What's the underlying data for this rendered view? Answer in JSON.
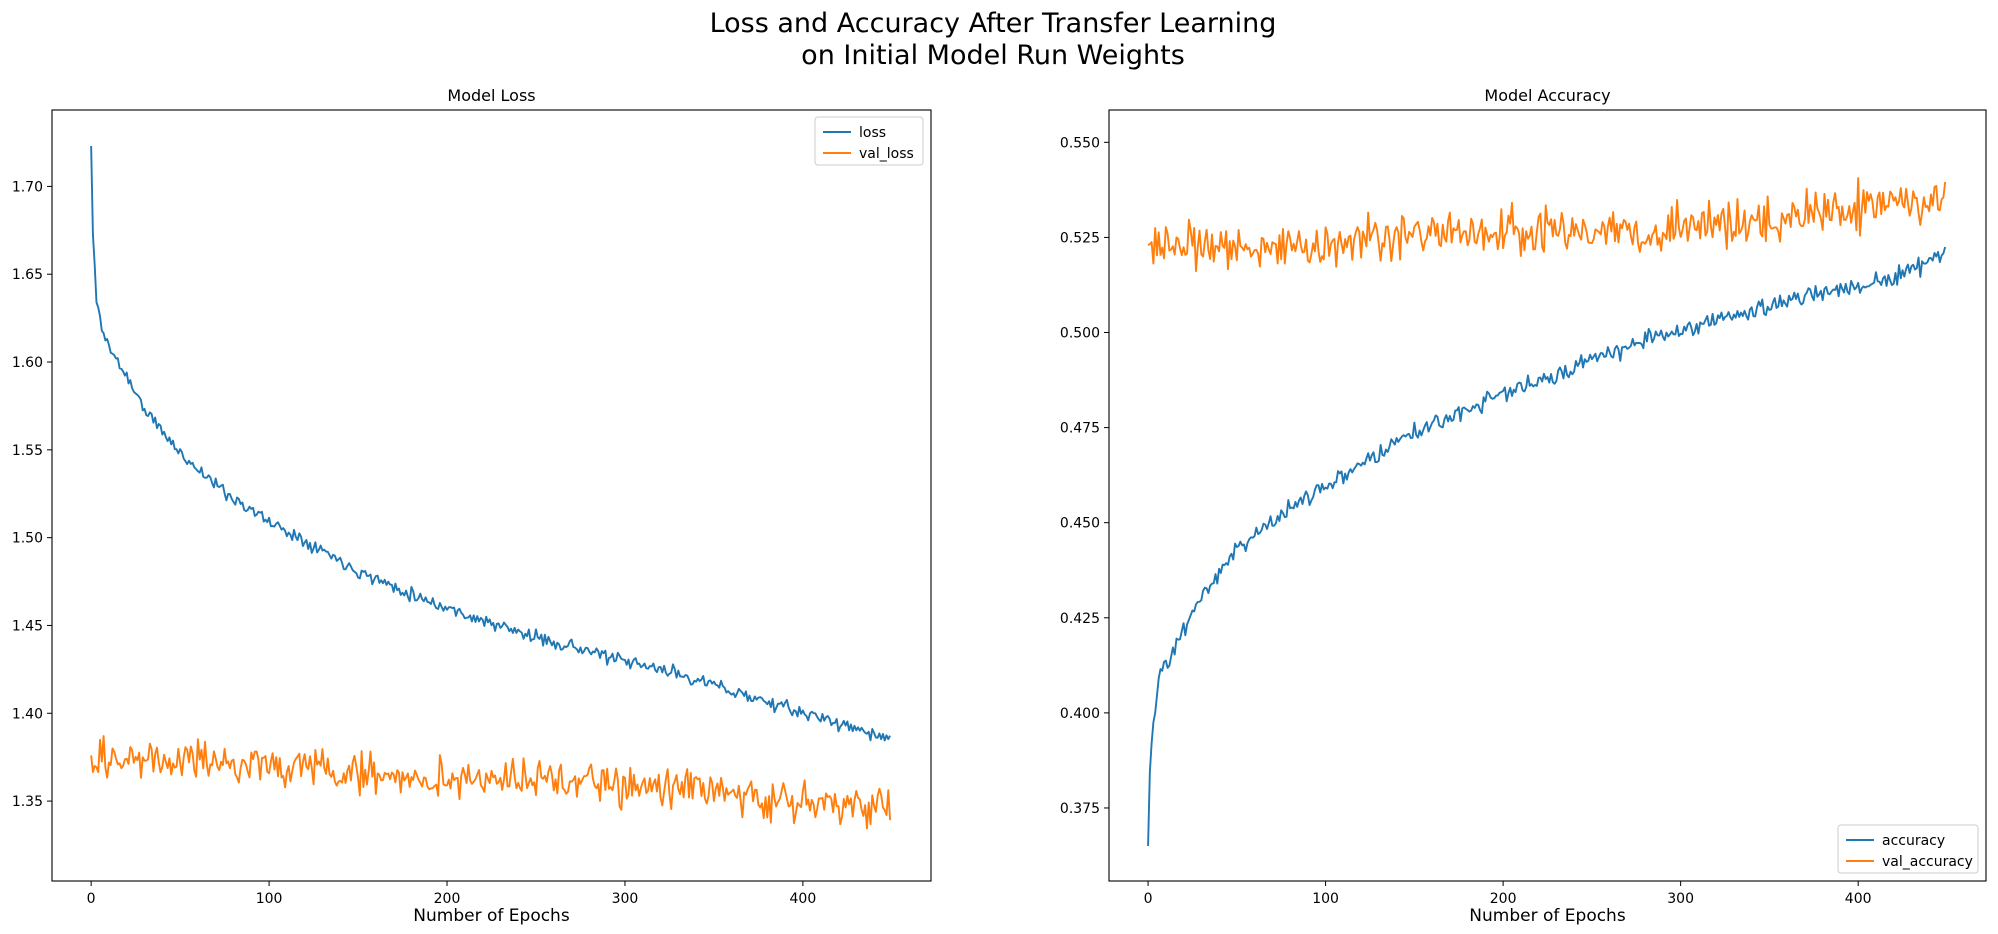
{
  "figure": {
    "suptitle_lines": [
      "Loss and Accuracy After Transfer Learning",
      "on Initial Model Run Weights"
    ]
  },
  "colors": {
    "series_1": "#1f77b4",
    "series_2": "#ff7f0e",
    "axes": "#000000",
    "legend_border": "#cccccc"
  },
  "chart_data": [
    {
      "type": "line",
      "title": "Model Loss",
      "xlabel": "Number of Epochs",
      "ylabel": "",
      "xlim": [
        -22,
        472
      ],
      "ylim": [
        1.3045,
        1.7435
      ],
      "xticks": [
        0,
        100,
        200,
        300,
        400
      ],
      "yticks": [
        1.35,
        1.4,
        1.45,
        1.5,
        1.55,
        1.6,
        1.65,
        1.7
      ],
      "ytick_decimals": 2,
      "grid": false,
      "legend": "top-right",
      "x_count": 450,
      "series": [
        {
          "name": "loss",
          "color": "#1f77b4",
          "anchors": [
            [
              0,
              1.723
            ],
            [
              1,
              1.672
            ],
            [
              3,
              1.635
            ],
            [
              5,
              1.625
            ],
            [
              8,
              1.613
            ],
            [
              12,
              1.605
            ],
            [
              20,
              1.592
            ],
            [
              30,
              1.573
            ],
            [
              50,
              1.548
            ],
            [
              75,
              1.526
            ],
            [
              100,
              1.509
            ],
            [
              125,
              1.496
            ],
            [
              150,
              1.481
            ],
            [
              175,
              1.47
            ],
            [
              200,
              1.46
            ],
            [
              225,
              1.451
            ],
            [
              250,
              1.443
            ],
            [
              275,
              1.437
            ],
            [
              300,
              1.429
            ],
            [
              325,
              1.424
            ],
            [
              350,
              1.416
            ],
            [
              375,
              1.408
            ],
            [
              400,
              1.4
            ],
            [
              425,
              1.393
            ],
            [
              449,
              1.385
            ]
          ],
          "noise": 0.0055,
          "seed": 11,
          "clamp": [
            1.382,
            1.723
          ]
        },
        {
          "name": "val_loss",
          "color": "#ff7f0e",
          "anchors": [
            [
              0,
              1.376
            ],
            [
              50,
              1.372
            ],
            [
              100,
              1.371
            ],
            [
              150,
              1.366
            ],
            [
              200,
              1.362
            ],
            [
              250,
              1.362
            ],
            [
              300,
              1.359
            ],
            [
              350,
              1.355
            ],
            [
              400,
              1.35
            ],
            [
              449,
              1.347
            ]
          ],
          "noise": 0.017,
          "seed": 29,
          "clamp": [
            1.322,
            1.407
          ]
        }
      ]
    },
    {
      "type": "line",
      "title": "Model Accuracy",
      "xlabel": "Number of Epochs",
      "ylabel": "",
      "xlim": [
        -22,
        472
      ],
      "ylim": [
        0.3558,
        0.5585
      ],
      "xticks": [
        0,
        100,
        200,
        300,
        400
      ],
      "yticks": [
        0.375,
        0.4,
        0.425,
        0.45,
        0.475,
        0.5,
        0.525,
        0.55
      ],
      "ytick_decimals": 3,
      "grid": false,
      "legend": "bottom-right",
      "x_count": 450,
      "series": [
        {
          "name": "accuracy",
          "color": "#1f77b4",
          "anchors": [
            [
              0,
              0.365
            ],
            [
              1,
              0.385
            ],
            [
              3,
              0.398
            ],
            [
              6,
              0.409
            ],
            [
              10,
              0.413
            ],
            [
              20,
              0.422
            ],
            [
              30,
              0.431
            ],
            [
              50,
              0.443
            ],
            [
              75,
              0.452
            ],
            [
              100,
              0.46
            ],
            [
              125,
              0.467
            ],
            [
              150,
              0.474
            ],
            [
              175,
              0.479
            ],
            [
              200,
              0.484
            ],
            [
              225,
              0.488
            ],
            [
              250,
              0.493
            ],
            [
              275,
              0.497
            ],
            [
              300,
              0.501
            ],
            [
              325,
              0.504
            ],
            [
              350,
              0.507
            ],
            [
              375,
              0.51
            ],
            [
              400,
              0.512
            ],
            [
              425,
              0.515
            ],
            [
              449,
              0.521
            ]
          ],
          "noise": 0.0035,
          "seed": 47,
          "clamp": [
            0.365,
            0.524
          ]
        },
        {
          "name": "val_accuracy",
          "color": "#ff7f0e",
          "anchors": [
            [
              0,
              0.523
            ],
            [
              50,
              0.522
            ],
            [
              100,
              0.523
            ],
            [
              150,
              0.525
            ],
            [
              200,
              0.526
            ],
            [
              250,
              0.527
            ],
            [
              300,
              0.528
            ],
            [
              350,
              0.53
            ],
            [
              400,
              0.533
            ],
            [
              449,
              0.534
            ]
          ],
          "noise": 0.009,
          "seed": 83,
          "clamp": [
            0.498,
            0.549
          ]
        }
      ]
    }
  ]
}
